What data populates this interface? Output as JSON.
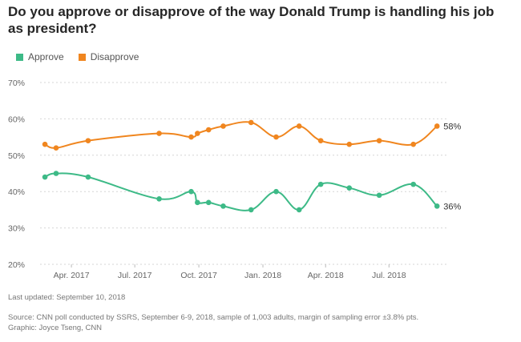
{
  "chart_data": {
    "type": "line",
    "title": "Do you approve or disapprove of the way Donald Trump is handling his job as president?",
    "ylim": [
      20,
      70
    ],
    "yticks": [
      20,
      30,
      40,
      50,
      60,
      70
    ],
    "ytick_labels": [
      "20%",
      "30%",
      "40%",
      "50%",
      "60%",
      "70%"
    ],
    "xlim": [
      "2017-02-15",
      "2018-09-25"
    ],
    "xticks": [
      "2017-04-01",
      "2017-07-01",
      "2017-10-01",
      "2018-01-01",
      "2018-04-01",
      "2018-07-01"
    ],
    "xtick_labels": [
      "Apr. 2017",
      "Jul. 2017",
      "Oct. 2017",
      "Jan. 2018",
      "Apr. 2018",
      "Jul. 2018"
    ],
    "grid": true,
    "legend_position": "top-left",
    "x": [
      "2017-02-22",
      "2017-03-10",
      "2017-04-25",
      "2017-08-05",
      "2017-09-20",
      "2017-09-29",
      "2017-10-15",
      "2017-11-05",
      "2017-12-15",
      "2018-01-20",
      "2018-02-22",
      "2018-03-25",
      "2018-05-05",
      "2018-06-17",
      "2018-08-05",
      "2018-09-08"
    ],
    "series": [
      {
        "name": "Approve",
        "color": "#3dba87",
        "values": [
          44,
          45,
          44,
          38,
          40,
          37,
          37,
          36,
          35,
          40,
          35,
          42,
          41,
          39,
          42,
          36
        ],
        "end_label": "36%"
      },
      {
        "name": "Disapprove",
        "color": "#f0861f",
        "values": [
          53,
          52,
          54,
          56,
          55,
          56,
          57,
          58,
          59,
          55,
          58,
          54,
          53,
          54,
          53,
          58
        ],
        "end_label": "58%"
      }
    ]
  },
  "colors": {
    "approve": "#3dba87",
    "disapprove": "#f0861f",
    "grid": "#d6d6d6"
  },
  "footer": {
    "updated": "Last updated: September 10, 2018",
    "source": "Source: CNN poll conducted by SSRS, September 6-9, 2018, sample of 1,003 adults, margin of sampling error ±3.8% pts.",
    "graphic": "Graphic: Joyce Tseng, CNN"
  }
}
